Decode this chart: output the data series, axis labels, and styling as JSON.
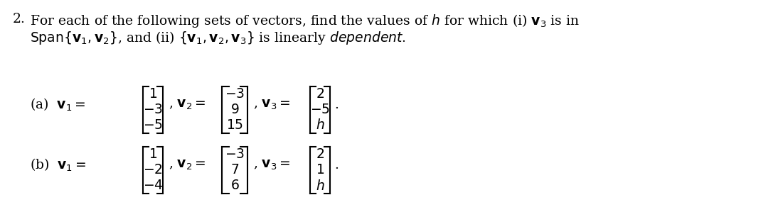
{
  "background_color": "#ffffff",
  "text_color": "#000000",
  "figsize": [
    11.01,
    2.92
  ],
  "dpi": 100,
  "part_a": {
    "v1": [
      "1",
      "-3",
      "-5"
    ],
    "v2": [
      "-3",
      "9",
      "15"
    ],
    "v3": [
      "2",
      "-5",
      "h"
    ]
  },
  "part_b": {
    "v1": [
      "1",
      "-2",
      "-4"
    ],
    "v2": [
      "-3",
      "7",
      "6"
    ],
    "v3": [
      "2",
      "1",
      "h"
    ]
  },
  "line1_num": "2.",
  "line1_text": "For each of the following sets of vectors, find the values of $h$ for which (i) $\\mathbf{v}_3$ is in",
  "line2_text1": "$\\mathrm{Span}\\{\\mathbf{v}_1,\\mathbf{v}_2\\}$, and (ii) $\\{\\mathbf{v}_1,\\mathbf{v}_2,\\mathbf{v}_3\\}$ is linearly ",
  "line2_italic": "$\\mathit{dependent}$.",
  "part_a_prefix": "(a)  $\\mathbf{v}_1=$",
  "part_a_mid1": ", $\\mathbf{v}_2=$",
  "part_a_mid2": ", $\\mathbf{v}_3=$",
  "part_a_end": ".",
  "part_b_prefix": "(b)  $\\mathbf{v}_1=$",
  "part_b_mid1": ", $\\mathbf{v}_2=$",
  "part_b_mid2": ", $\\mathbf{v}_3=$",
  "part_b_end": ".",
  "fs_text": 13.5,
  "fs_vec": 13.5
}
